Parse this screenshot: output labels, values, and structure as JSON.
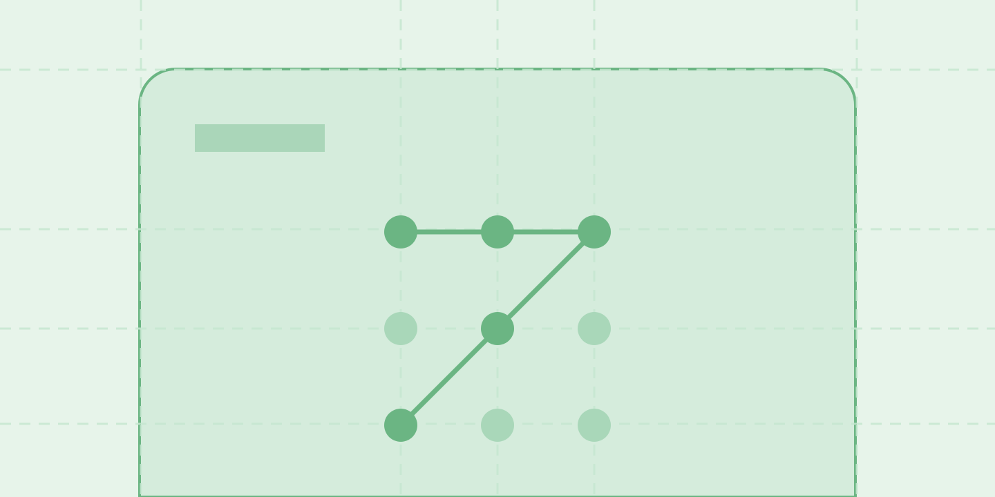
{
  "colors": {
    "background": "#e7f4ea",
    "grid": "#c5e6d0",
    "card_fill": "#d5ecdc",
    "card_border": "#6bb583",
    "title_placeholder": "#aad6b9",
    "dot_active": "#6bb583",
    "dot_inactive": "#a9d7b9",
    "pattern_line": "#6bb583"
  },
  "pattern_lock": {
    "dots": [
      {
        "row": 0,
        "col": 0,
        "active": true
      },
      {
        "row": 0,
        "col": 1,
        "active": true
      },
      {
        "row": 0,
        "col": 2,
        "active": true
      },
      {
        "row": 1,
        "col": 0,
        "active": false
      },
      {
        "row": 1,
        "col": 1,
        "active": true
      },
      {
        "row": 1,
        "col": 2,
        "active": false
      },
      {
        "row": 2,
        "col": 0,
        "active": true
      },
      {
        "row": 2,
        "col": 1,
        "active": false
      },
      {
        "row": 2,
        "col": 2,
        "active": false
      }
    ],
    "sequence": [
      [
        0,
        0
      ],
      [
        0,
        1
      ],
      [
        0,
        2
      ],
      [
        1,
        1
      ],
      [
        2,
        0
      ]
    ]
  }
}
